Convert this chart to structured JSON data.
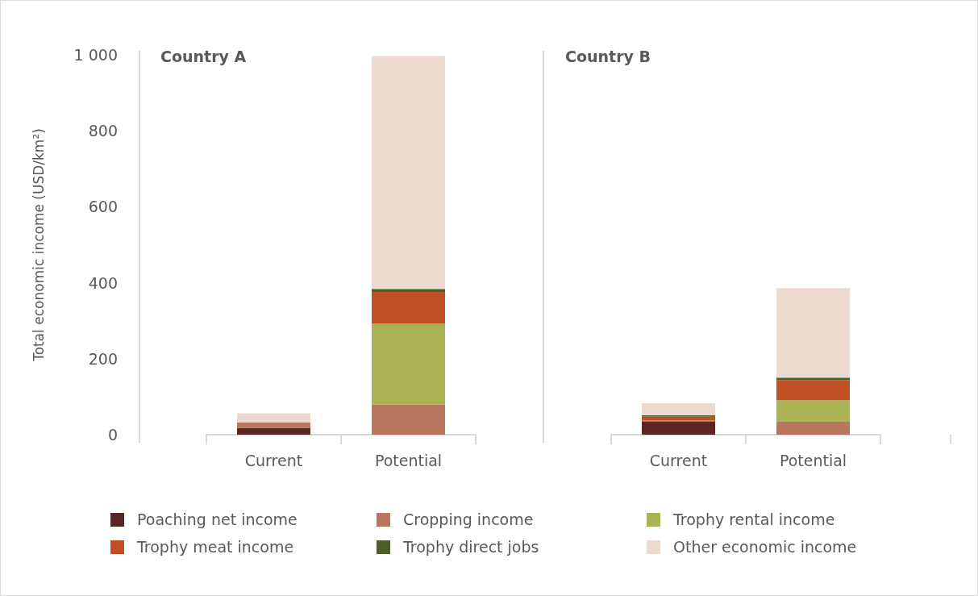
{
  "chart_data": [
    {
      "type": "bar",
      "title": "Country A",
      "ylabel": "Total economic income (USD/km²)",
      "categories": [
        "Current",
        "Potential"
      ],
      "stacked": true,
      "grid": false,
      "legend": "bottom",
      "ylim": [
        0,
        1000
      ],
      "yticks": [
        0,
        200,
        400,
        600,
        800,
        {
          "value": 1000,
          "label": "1 000"
        }
      ],
      "series": [
        {
          "name": "Poaching net income",
          "color": "#5a2623",
          "values": [
            18,
            0
          ]
        },
        {
          "name": "Cropping income",
          "color": "#b9765f",
          "values": [
            15,
            79
          ]
        },
        {
          "name": "Trophy rental income",
          "color": "#abb354",
          "values": [
            0,
            214
          ]
        },
        {
          "name": "Trophy meat income",
          "color": "#c05024",
          "values": [
            0,
            83
          ]
        },
        {
          "name": "Trophy direct jobs",
          "color": "#4e5e28",
          "values": [
            0,
            8
          ]
        },
        {
          "name": "Other economic income",
          "color": "#ecdad0",
          "values": [
            23,
            613
          ]
        }
      ]
    },
    {
      "type": "bar",
      "title": "Country B",
      "categories": [
        "Current",
        "Potential"
      ],
      "stacked": true,
      "grid": false,
      "tick_labels": "x",
      "ylim": [
        0,
        1000
      ],
      "series": [
        {
          "color": "#5a2623",
          "values": [
            34,
            0
          ]
        },
        {
          "color": "#b9765f",
          "values": [
            3,
            34
          ]
        },
        {
          "color": "#abb354",
          "values": [
            0,
            57
          ]
        },
        {
          "color": "#c05024",
          "values": [
            10,
            53
          ]
        },
        {
          "color": "#4e5e28",
          "values": [
            4,
            6
          ]
        },
        {
          "color": "#ecdad0",
          "values": [
            32,
            236
          ]
        }
      ]
    }
  ]
}
